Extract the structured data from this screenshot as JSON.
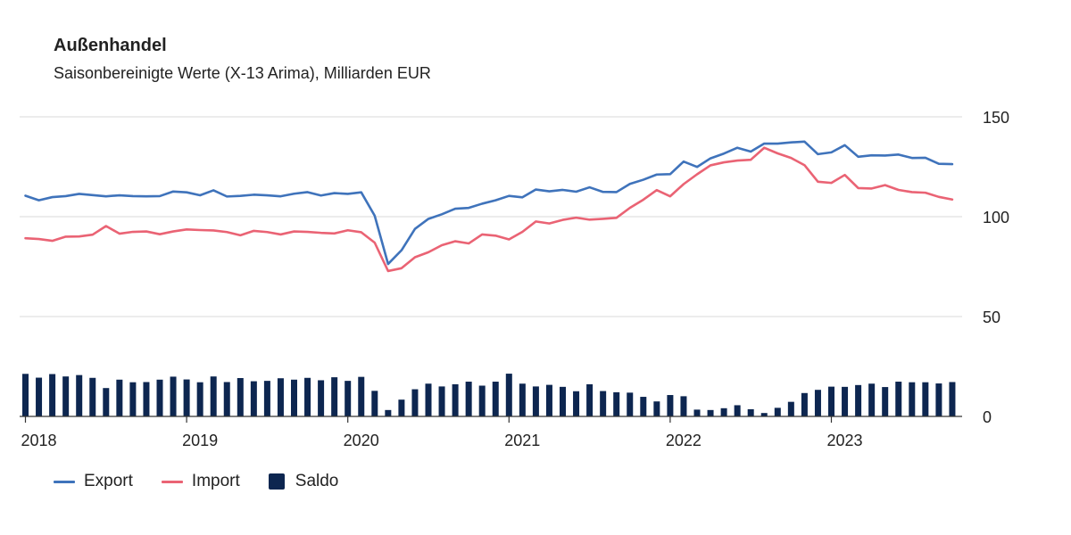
{
  "chart_data": {
    "type": "line+bar",
    "title": "Außenhandel",
    "subtitle": "Saisonbereinigte Werte (X-13 Arima), Milliarden EUR",
    "x_start": "2018-01",
    "x_labels": [
      "2018",
      "2019",
      "2020",
      "2021",
      "2022",
      "2023"
    ],
    "ylim": [
      0,
      150
    ],
    "yticks": [
      0,
      50,
      100,
      150
    ],
    "grid": true,
    "legend_position": "bottom-left",
    "series": [
      {
        "name": "Export",
        "type": "line",
        "color": "#3f73bb",
        "values": [
          110.5,
          108.2,
          109.8,
          110.3,
          111.4,
          110.8,
          110.2,
          110.7,
          110.3,
          110.2,
          110.3,
          112.6,
          112.2,
          110.7,
          113.2,
          110.1,
          110.4,
          111.0,
          110.7,
          110.2,
          111.5,
          112.3,
          110.6,
          111.8,
          111.4,
          112.2,
          100.5,
          76.3,
          83.2,
          93.9,
          98.9,
          101.2,
          104.0,
          104.4,
          106.5,
          108.2,
          110.4,
          109.7,
          113.6,
          112.7,
          113.4,
          112.5,
          114.7,
          112.4,
          112.3,
          116.4,
          118.5,
          121.1,
          121.3,
          127.6,
          124.9,
          129.2,
          131.6,
          134.5,
          132.6,
          136.6,
          136.6,
          137.2,
          137.6,
          131.3,
          132.2,
          135.8,
          130.0,
          130.7,
          130.6,
          131.1,
          129.4,
          129.5,
          126.5,
          126.3
        ]
      },
      {
        "name": "Import",
        "type": "line",
        "color": "#ea6374",
        "values": [
          89.2,
          88.8,
          87.9,
          90.0,
          90.1,
          91.0,
          95.3,
          91.5,
          92.4,
          92.6,
          91.2,
          92.6,
          93.6,
          93.3,
          93.1,
          92.3,
          90.7,
          92.9,
          92.3,
          91.1,
          92.6,
          92.4,
          91.9,
          91.6,
          93.2,
          92.2,
          87.0,
          72.8,
          74.2,
          79.7,
          82.2,
          85.7,
          87.7,
          86.6,
          91.1,
          90.5,
          88.6,
          92.4,
          97.6,
          96.6,
          98.4,
          99.5,
          98.5,
          98.9,
          99.4,
          104.4,
          108.5,
          113.3,
          110.2,
          116.3,
          121.2,
          125.7,
          127.2,
          128.1,
          128.5,
          134.5,
          131.7,
          129.4,
          125.8,
          117.5,
          116.9,
          120.9,
          114.3,
          114.1,
          115.8,
          113.4,
          112.3,
          112.0,
          109.9,
          108.6
        ]
      },
      {
        "name": "Saldo",
        "type": "bar",
        "color": "#0d2650",
        "values": [
          21.3,
          19.4,
          21.2,
          20.0,
          20.7,
          19.3,
          14.2,
          18.4,
          17.1,
          17.2,
          18.4,
          19.9,
          18.5,
          17.1,
          20.0,
          17.2,
          19.2,
          17.6,
          17.8,
          19.1,
          18.4,
          19.3,
          18.1,
          19.6,
          17.8,
          19.8,
          12.8,
          3.2,
          8.4,
          13.6,
          16.4,
          15.0,
          16.1,
          17.4,
          15.4,
          17.4,
          21.4,
          16.4,
          15.0,
          15.8,
          14.8,
          12.6,
          16.1,
          12.7,
          12.1,
          11.9,
          9.8,
          7.5,
          10.7,
          10.1,
          3.4,
          3.2,
          4.1,
          5.6,
          3.6,
          1.7,
          4.3,
          7.3,
          11.7,
          13.3,
          14.9,
          14.8,
          15.7,
          16.4,
          14.7,
          17.4,
          17.1,
          17.1,
          16.5,
          17.2
        ]
      }
    ]
  }
}
